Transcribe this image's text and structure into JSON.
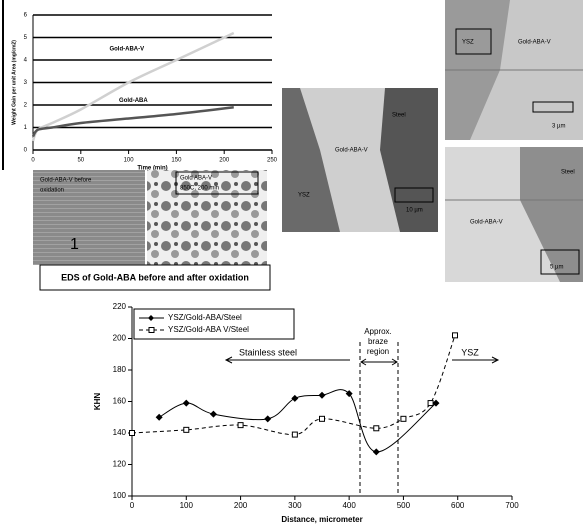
{
  "chart_data": [
    {
      "type": "line",
      "x_label": "Time (min)",
      "y_label": "Weight Gain per unit Area (mg/cm2)",
      "xlim": [
        0,
        250
      ],
      "xticks": [
        0,
        50,
        100,
        150,
        200,
        250
      ],
      "ylim": [
        0,
        6
      ],
      "yticks": [
        0,
        1,
        2,
        3,
        4,
        5,
        6
      ],
      "grid": true,
      "series": [
        {
          "name": "Gold-ABA-V",
          "color": "#d0d0d0",
          "x": [
            0,
            5,
            20,
            50,
            100,
            150,
            210
          ],
          "values": [
            0.4,
            0.9,
            1.2,
            1.8,
            3.0,
            4.0,
            5.2
          ]
        },
        {
          "name": "Gold-ABA",
          "color": "#555555",
          "x": [
            0,
            5,
            20,
            50,
            100,
            150,
            210
          ],
          "values": [
            0.6,
            0.9,
            1.0,
            1.2,
            1.4,
            1.6,
            1.9
          ]
        }
      ]
    },
    {
      "type": "line",
      "x_label": "Distance, micrometer",
      "y_label": "KHN",
      "xlim": [
        0,
        700
      ],
      "xticks": [
        0,
        100,
        200,
        300,
        400,
        500,
        600,
        700
      ],
      "ylim": [
        100,
        220
      ],
      "yticks": [
        100,
        120,
        140,
        160,
        180,
        200,
        220
      ],
      "legend": "top-left",
      "series": [
        {
          "name": "YSZ/Gold-ABA/Steel",
          "color": "#000000",
          "marker": "diamond",
          "line_style": "solid",
          "x": [
            50,
            100,
            150,
            250,
            300,
            350,
            400,
            450,
            560
          ],
          "values": [
            150,
            159,
            152,
            149,
            162,
            164,
            165,
            128,
            159
          ]
        },
        {
          "name": "YSZ/Gold-ABA V/Steel",
          "color": "#000000",
          "marker": "square",
          "line_style": "dashed",
          "x": [
            0,
            100,
            200,
            300,
            350,
            450,
            500,
            550,
            595
          ],
          "values": [
            140,
            142,
            145,
            139,
            149,
            143,
            149,
            159,
            202
          ]
        }
      ],
      "braze_region": [
        420,
        490
      ],
      "annotations": [
        "Stainless steel",
        "Approx.",
        "braze",
        "region",
        "YSZ"
      ]
    }
  ],
  "images": {
    "before": {
      "label": [
        "Gold-ABA-V before",
        "oxidation"
      ],
      "number": "1"
    },
    "after": {
      "label": [
        "Gold ABA-V",
        "850C, 200 min"
      ]
    },
    "caption": "EDS of Gold-ABA before and after oxidation",
    "sem_middle": {
      "labels": [
        "Steel",
        "Gold-ABA-V",
        "YSZ"
      ],
      "scale": "10 µm"
    },
    "sem_top_right": {
      "labels": [
        "YSZ",
        "Gold-ABA-V"
      ],
      "scale": "3 µm"
    },
    "sem_bottom_right": {
      "labels": [
        "Steel",
        "Gold-ABA-V"
      ],
      "scale": "5 µm"
    }
  }
}
